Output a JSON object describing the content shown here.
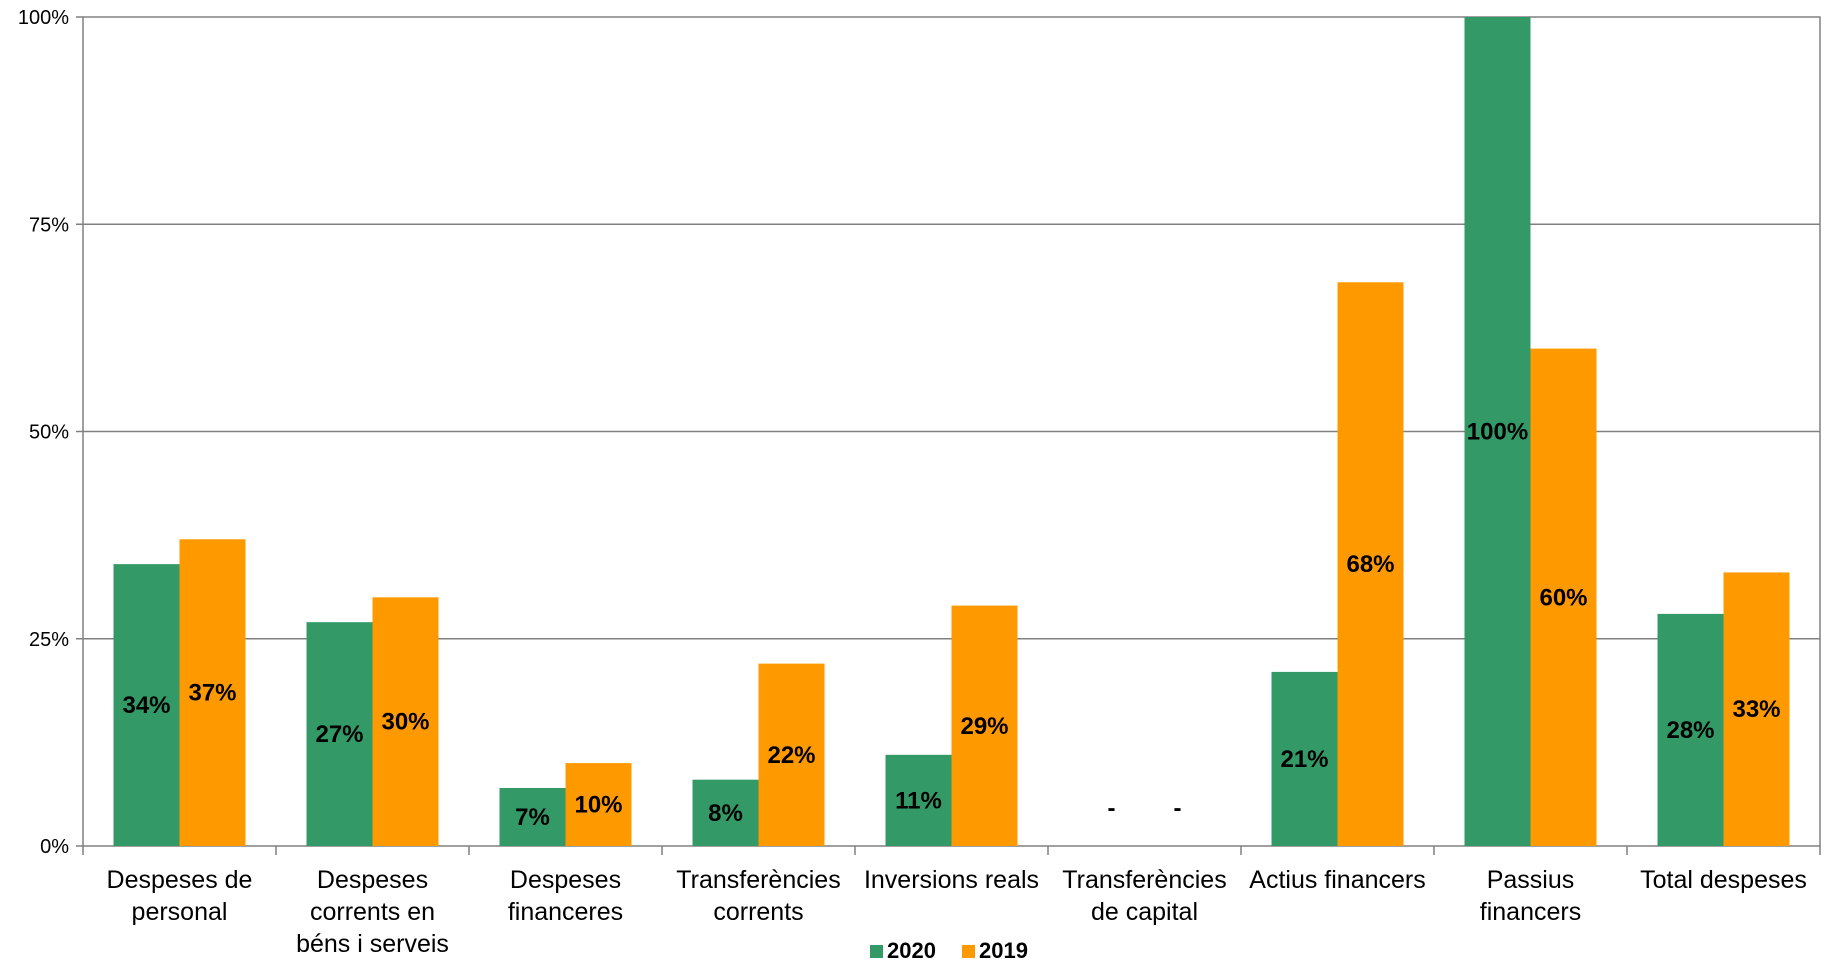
{
  "chart_data": {
    "type": "bar",
    "categories": [
      [
        "Despeses de",
        "personal"
      ],
      [
        "Despeses",
        "corrents en",
        "béns i serveis"
      ],
      [
        "Despeses",
        "financeres"
      ],
      [
        "Transferències",
        "corrents"
      ],
      [
        "Inversions reals"
      ],
      [
        "Transferències",
        "de capital"
      ],
      [
        "Actius financers"
      ],
      [
        "Passius",
        "financers"
      ],
      [
        "Total despeses"
      ]
    ],
    "series": [
      {
        "name": "2020",
        "color": "#339966",
        "values": [
          34,
          27,
          7,
          8,
          11,
          0,
          21,
          100,
          28
        ],
        "labels": [
          "34%",
          "27%",
          "7%",
          "8%",
          "11%",
          "-",
          "21%",
          "100%",
          "28%"
        ]
      },
      {
        "name": "2019",
        "color": "#FF9900",
        "values": [
          37,
          30,
          10,
          22,
          29,
          0,
          68,
          60,
          33
        ],
        "labels": [
          "37%",
          "30%",
          "10%",
          "22%",
          "29%",
          "-",
          "68%",
          "60%",
          "33%"
        ]
      }
    ],
    "y_ticks": [
      {
        "value": 0,
        "label": "0%"
      },
      {
        "value": 25,
        "label": "25%"
      },
      {
        "value": 50,
        "label": "50%"
      },
      {
        "value": 75,
        "label": "75%"
      },
      {
        "value": 100,
        "label": "100%"
      }
    ],
    "ylim": [
      0,
      100
    ],
    "grid": true,
    "legend_position": "bottom-center",
    "title": "",
    "xlabel": "",
    "ylabel": ""
  }
}
